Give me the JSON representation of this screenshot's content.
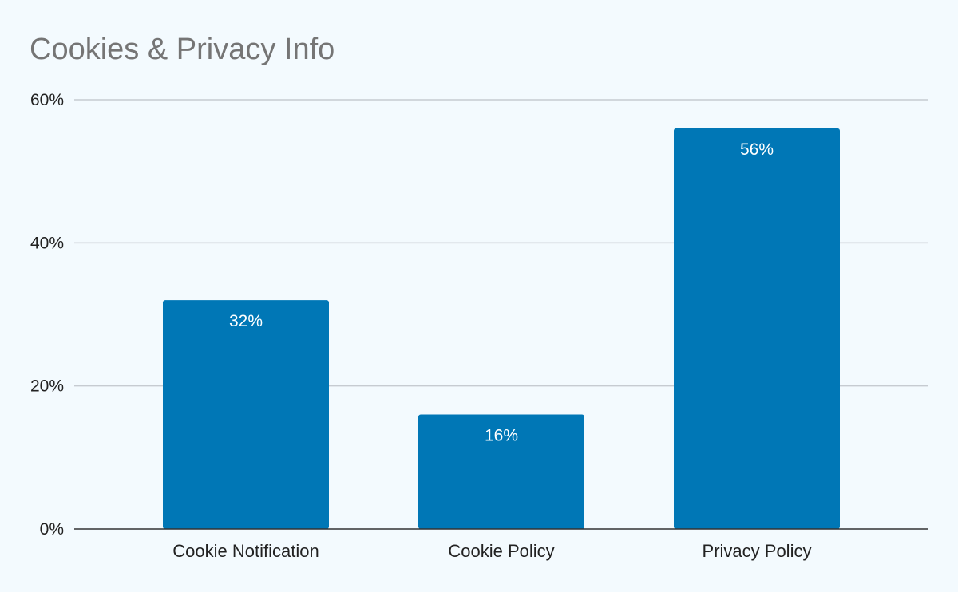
{
  "chart_data": {
    "type": "bar",
    "title": "Cookies & Privacy Info",
    "categories": [
      "Cookie Notification",
      "Cookie Policy",
      "Privacy Policy"
    ],
    "values": [
      32,
      16,
      56
    ],
    "data_labels": [
      "32%",
      "16%",
      "56%"
    ],
    "ylim": [
      0,
      60
    ],
    "yticks": [
      0,
      20,
      40,
      60
    ],
    "ytick_labels": [
      "0%",
      "20%",
      "40%",
      "60%"
    ],
    "xlabel": "",
    "ylabel": "",
    "grid": true,
    "legend": "none"
  },
  "colors": {
    "background": "#f3fafe",
    "bar": "#0077b6",
    "gridline": "#c6cbd1",
    "title": "#757575",
    "data_label": "#ffffff"
  }
}
